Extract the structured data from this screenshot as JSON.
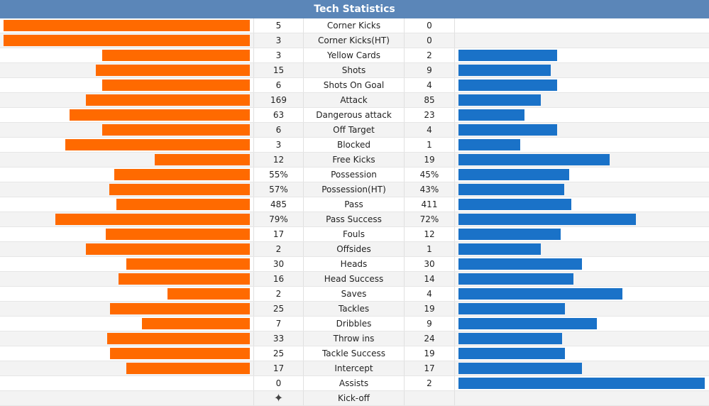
{
  "header": {
    "title": "Tech Statistics"
  },
  "colors": {
    "home": "#ff6a00",
    "away": "#1a72c8",
    "header": "#5b86b8"
  },
  "rows": [
    {
      "name": "Corner Kicks",
      "home": "5",
      "away": "0",
      "home_fill": 1.0,
      "away_fill": 0.0
    },
    {
      "name": "Corner Kicks(HT)",
      "home": "3",
      "away": "0",
      "home_fill": 1.0,
      "away_fill": 0.0
    },
    {
      "name": "Yellow Cards",
      "home": "3",
      "away": "2",
      "home_fill": 0.6,
      "away_fill": 0.4
    },
    {
      "name": "Shots",
      "home": "15",
      "away": "9",
      "home_fill": 0.625,
      "away_fill": 0.375
    },
    {
      "name": "Shots On Goal",
      "home": "6",
      "away": "4",
      "home_fill": 0.6,
      "away_fill": 0.4
    },
    {
      "name": "Attack",
      "home": "169",
      "away": "85",
      "home_fill": 0.665,
      "away_fill": 0.335
    },
    {
      "name": "Dangerous attack",
      "home": "63",
      "away": "23",
      "home_fill": 0.733,
      "away_fill": 0.267
    },
    {
      "name": "Off Target",
      "home": "6",
      "away": "4",
      "home_fill": 0.6,
      "away_fill": 0.4
    },
    {
      "name": "Blocked",
      "home": "3",
      "away": "1",
      "home_fill": 0.75,
      "away_fill": 0.25
    },
    {
      "name": "Free Kicks",
      "home": "12",
      "away": "19",
      "home_fill": 0.387,
      "away_fill": 0.613
    },
    {
      "name": "Possession",
      "home": "55%",
      "away": "45%",
      "home_fill": 0.55,
      "away_fill": 0.45
    },
    {
      "name": "Possession(HT)",
      "home": "57%",
      "away": "43%",
      "home_fill": 0.57,
      "away_fill": 0.43
    },
    {
      "name": "Pass",
      "home": "485",
      "away": "411",
      "home_fill": 0.541,
      "away_fill": 0.459
    },
    {
      "name": "Pass Success",
      "home": "79%",
      "away": "72%",
      "home_fill": 0.79,
      "away_fill": 0.72
    },
    {
      "name": "Fouls",
      "home": "17",
      "away": "12",
      "home_fill": 0.586,
      "away_fill": 0.414
    },
    {
      "name": "Offsides",
      "home": "2",
      "away": "1",
      "home_fill": 0.667,
      "away_fill": 0.333
    },
    {
      "name": "Heads",
      "home": "30",
      "away": "30",
      "home_fill": 0.5,
      "away_fill": 0.5
    },
    {
      "name": "Head Success",
      "home": "16",
      "away": "14",
      "home_fill": 0.533,
      "away_fill": 0.467
    },
    {
      "name": "Saves",
      "home": "2",
      "away": "4",
      "home_fill": 0.333,
      "away_fill": 0.667
    },
    {
      "name": "Tackles",
      "home": "25",
      "away": "19",
      "home_fill": 0.568,
      "away_fill": 0.432
    },
    {
      "name": "Dribbles",
      "home": "7",
      "away": "9",
      "home_fill": 0.438,
      "away_fill": 0.562
    },
    {
      "name": "Throw ins",
      "home": "33",
      "away": "24",
      "home_fill": 0.579,
      "away_fill": 0.421
    },
    {
      "name": "Tackle Success",
      "home": "25",
      "away": "19",
      "home_fill": 0.568,
      "away_fill": 0.432
    },
    {
      "name": "Intercept",
      "home": "17",
      "away": "17",
      "home_fill": 0.5,
      "away_fill": 0.5
    },
    {
      "name": "Assists",
      "home": "0",
      "away": "2",
      "home_fill": 0.0,
      "away_fill": 1.0
    }
  ],
  "kickoff": {
    "name": "Kick-off",
    "icon": "kickoff-ball-icon",
    "glyph": "✦"
  }
}
